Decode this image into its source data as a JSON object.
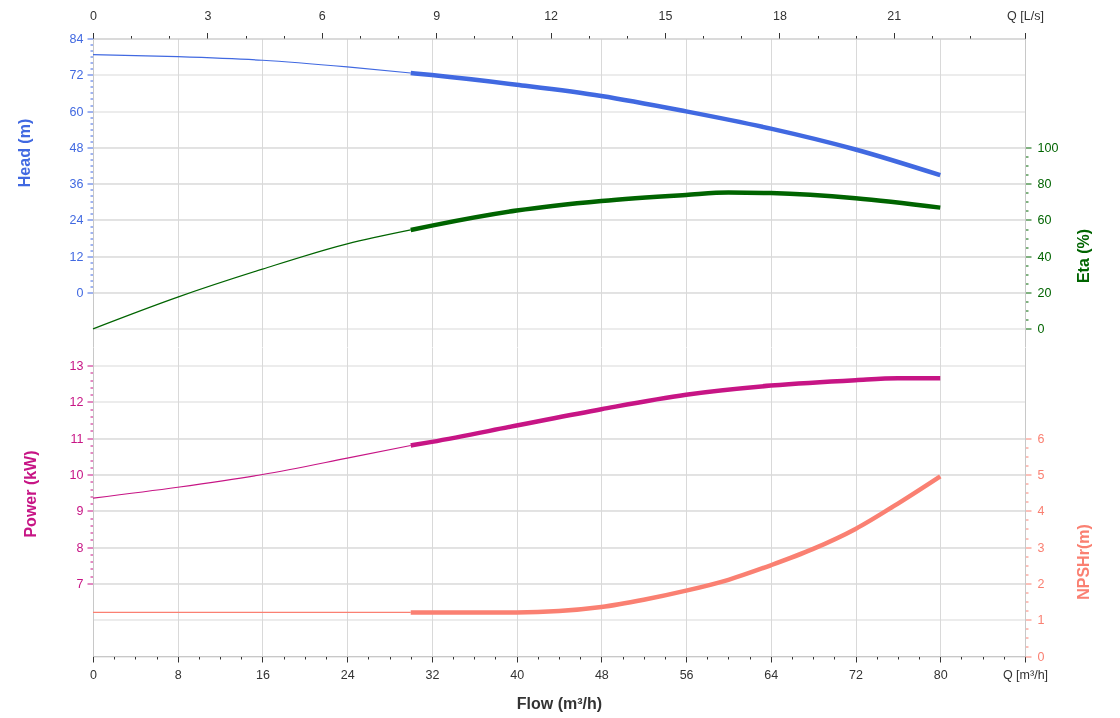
{
  "chart_data": [
    {
      "type": "line",
      "ylabel": "Head (m)",
      "y2label": "Eta (%)",
      "tick_labels": "y",
      "grid": true,
      "xlim": [
        0,
        88
      ],
      "xticks": [
        0,
        8,
        16,
        24,
        32,
        40,
        48,
        56,
        64,
        72,
        80
      ],
      "x2lim": [
        0,
        24.44
      ],
      "x2ticks": [
        0,
        {
          "value": 1,
          "label": null
        },
        {
          "value": 2,
          "label": null
        },
        3,
        {
          "value": 4,
          "label": null
        },
        {
          "value": 5,
          "label": null
        },
        6,
        {
          "value": 7,
          "label": null
        },
        {
          "value": 8,
          "label": null
        },
        9,
        {
          "value": 10,
          "label": null
        },
        {
          "value": 11,
          "label": null
        },
        12,
        {
          "value": 13,
          "label": null
        },
        {
          "value": 14,
          "label": null
        },
        15,
        {
          "value": 16,
          "label": null
        },
        {
          "value": 17,
          "label": null
        },
        18,
        {
          "value": 19,
          "label": null
        },
        {
          "value": 20,
          "label": null
        },
        21,
        {
          "value": 22,
          "label": null
        },
        {
          "value": 23,
          "label": null
        },
        {
          "value": 24.44,
          "label": "Q [L/s]"
        }
      ],
      "ylim": [
        -18,
        84
      ],
      "yticks": [
        0,
        {
          "value": 2,
          "label": null
        },
        {
          "value": 4,
          "label": null
        },
        {
          "value": 6,
          "label": null
        },
        {
          "value": 8,
          "label": null
        },
        {
          "value": 10,
          "label": null
        },
        12,
        {
          "value": 14,
          "label": null
        },
        {
          "value": 16,
          "label": null
        },
        {
          "value": 18,
          "label": null
        },
        {
          "value": 20,
          "label": null
        },
        {
          "value": 22,
          "label": null
        },
        24,
        {
          "value": 26,
          "label": null
        },
        {
          "value": 28,
          "label": null
        },
        {
          "value": 30,
          "label": null
        },
        {
          "value": 32,
          "label": null
        },
        {
          "value": 34,
          "label": null
        },
        36,
        {
          "value": 38,
          "label": null
        },
        {
          "value": 40,
          "label": null
        },
        {
          "value": 42,
          "label": null
        },
        {
          "value": 44,
          "label": null
        },
        {
          "value": 46,
          "label": null
        },
        48,
        {
          "value": 50,
          "label": null
        },
        {
          "value": 52,
          "label": null
        },
        {
          "value": 54,
          "label": null
        },
        {
          "value": 56,
          "label": null
        },
        {
          "value": 58,
          "label": null
        },
        60,
        {
          "value": 62,
          "label": null
        },
        {
          "value": 64,
          "label": null
        },
        {
          "value": 66,
          "label": null
        },
        {
          "value": 68,
          "label": null
        },
        {
          "value": 70,
          "label": null
        },
        72,
        {
          "value": 74,
          "label": null
        },
        {
          "value": 76,
          "label": null
        },
        {
          "value": 78,
          "label": null
        },
        {
          "value": 80,
          "label": null
        },
        {
          "value": 82,
          "label": null
        },
        84
      ],
      "y2lim": [
        -10,
        160
      ],
      "y2ticks": [
        0,
        {
          "value": 5,
          "label": null
        },
        {
          "value": 10,
          "label": null
        },
        {
          "value": 15,
          "label": null
        },
        20,
        {
          "value": 25,
          "label": null
        },
        {
          "value": 30,
          "label": null
        },
        {
          "value": 35,
          "label": null
        },
        40,
        {
          "value": 45,
          "label": null
        },
        {
          "value": 50,
          "label": null
        },
        {
          "value": 55,
          "label": null
        },
        60,
        {
          "value": 65,
          "label": null
        },
        {
          "value": 70,
          "label": null
        },
        {
          "value": 75,
          "label": null
        },
        80,
        {
          "value": 85,
          "label": null
        },
        {
          "value": 90,
          "label": null
        },
        {
          "value": 95,
          "label": null
        },
        100
      ],
      "series": [
        {
          "color": "#4169e1",
          "x": [
            0,
            8,
            16,
            24,
            30
          ],
          "values": [
            78.7,
            78.0,
            76.8,
            74.6,
            72.6
          ]
        },
        {
          "color": "#4169e1",
          "x": [
            30,
            32,
            40,
            48,
            56,
            64,
            72,
            80
          ],
          "values": [
            72.6,
            71.9,
            68.7,
            65.0,
            59.9,
            54.2,
            47.3,
            38.8
          ]
        },
        {
          "color": "#006400",
          "axis": "y2",
          "x": [
            0,
            8,
            16,
            24,
            30
          ],
          "values": [
            0,
            17.5,
            32.9,
            46.8,
            54.5
          ]
        },
        {
          "color": "#006400",
          "axis": "y2",
          "x": [
            30,
            32,
            40,
            48,
            56,
            60,
            64,
            72,
            80
          ],
          "values": [
            54.5,
            56.9,
            65.2,
            70.5,
            73.8,
            75.1,
            74.8,
            72.0,
            66.8
          ]
        }
      ]
    },
    {
      "type": "line",
      "xlabel": "Flow (m³/h)",
      "ylabel": "Power (kW)",
      "y2label": "NPSHr(m)",
      "grid": true,
      "xlim": [
        0,
        88
      ],
      "xticks": [
        0,
        {
          "value": 2,
          "label": null
        },
        {
          "value": 4,
          "label": null
        },
        {
          "value": 6,
          "label": null
        },
        8,
        {
          "value": 10,
          "label": null
        },
        {
          "value": 12,
          "label": null
        },
        {
          "value": 14,
          "label": null
        },
        16,
        {
          "value": 18,
          "label": null
        },
        {
          "value": 20,
          "label": null
        },
        {
          "value": 22,
          "label": null
        },
        24,
        {
          "value": 26,
          "label": null
        },
        {
          "value": 28,
          "label": null
        },
        {
          "value": 30,
          "label": null
        },
        32,
        {
          "value": 34,
          "label": null
        },
        {
          "value": 36,
          "label": null
        },
        {
          "value": 38,
          "label": null
        },
        40,
        {
          "value": 42,
          "label": null
        },
        {
          "value": 44,
          "label": null
        },
        {
          "value": 46,
          "label": null
        },
        48,
        {
          "value": 50,
          "label": null
        },
        {
          "value": 52,
          "label": null
        },
        {
          "value": 54,
          "label": null
        },
        56,
        {
          "value": 58,
          "label": null
        },
        {
          "value": 60,
          "label": null
        },
        {
          "value": 62,
          "label": null
        },
        64,
        {
          "value": 66,
          "label": null
        },
        {
          "value": 68,
          "label": null
        },
        {
          "value": 70,
          "label": null
        },
        72,
        {
          "value": 74,
          "label": null
        },
        {
          "value": 76,
          "label": null
        },
        {
          "value": 78,
          "label": null
        },
        80,
        {
          "value": 82,
          "label": null
        },
        {
          "value": 84,
          "label": null
        },
        {
          "value": 86,
          "label": null
        },
        {
          "value": 88,
          "label": "Q [m³/h]"
        }
      ],
      "ylim": [
        5,
        13.5
      ],
      "yticks": [
        7,
        {
          "value": 7.2,
          "label": null
        },
        {
          "value": 7.4,
          "label": null
        },
        {
          "value": 7.6,
          "label": null
        },
        {
          "value": 7.8,
          "label": null
        },
        8,
        {
          "value": 8.2,
          "label": null
        },
        {
          "value": 8.4,
          "label": null
        },
        {
          "value": 8.6,
          "label": null
        },
        {
          "value": 8.8,
          "label": null
        },
        9,
        {
          "value": 9.2,
          "label": null
        },
        {
          "value": 9.4,
          "label": null
        },
        {
          "value": 9.6,
          "label": null
        },
        {
          "value": 9.8,
          "label": null
        },
        10,
        {
          "value": 10.2,
          "label": null
        },
        {
          "value": 10.4,
          "label": null
        },
        {
          "value": 10.6,
          "label": null
        },
        {
          "value": 10.8,
          "label": null
        },
        11,
        {
          "value": 11.2,
          "label": null
        },
        {
          "value": 11.4,
          "label": null
        },
        {
          "value": 11.6,
          "label": null
        },
        {
          "value": 11.8,
          "label": null
        },
        12,
        {
          "value": 12.2,
          "label": null
        },
        {
          "value": 12.4,
          "label": null
        },
        {
          "value": 12.6,
          "label": null
        },
        {
          "value": 12.8,
          "label": null
        },
        13
      ],
      "y2lim": [
        0,
        8.5
      ],
      "y2ticks": [
        0,
        {
          "value": 0.25,
          "label": null
        },
        {
          "value": 0.5,
          "label": null
        },
        {
          "value": 0.75,
          "label": null
        },
        1,
        {
          "value": 1.25,
          "label": null
        },
        {
          "value": 1.5,
          "label": null
        },
        {
          "value": 1.75,
          "label": null
        },
        2,
        {
          "value": 2.25,
          "label": null
        },
        {
          "value": 2.5,
          "label": null
        },
        {
          "value": 2.75,
          "label": null
        },
        3,
        {
          "value": 3.25,
          "label": null
        },
        {
          "value": 3.5,
          "label": null
        },
        {
          "value": 3.75,
          "label": null
        },
        4,
        {
          "value": 4.25,
          "label": null
        },
        {
          "value": 4.5,
          "label": null
        },
        {
          "value": 4.75,
          "label": null
        },
        5,
        {
          "value": 5.25,
          "label": null
        },
        {
          "value": 5.5,
          "label": null
        },
        {
          "value": 5.75,
          "label": null
        },
        6
      ],
      "series": [
        {
          "color": "#c71585",
          "x": [
            0,
            8,
            16,
            24,
            30
          ],
          "values": [
            9.35,
            9.65,
            10.0,
            10.45,
            10.8
          ]
        },
        {
          "color": "#c71585",
          "x": [
            30,
            32,
            40,
            48,
            56,
            64,
            72,
            76,
            80
          ],
          "values": [
            10.8,
            10.9,
            11.35,
            11.8,
            12.2,
            12.45,
            12.6,
            12.65,
            12.65
          ]
        },
        {
          "color": "#fa8072",
          "axis": "y2",
          "x": [
            0,
            8,
            16,
            24,
            30
          ],
          "values": [
            1.2,
            1.2,
            1.2,
            1.2,
            1.2
          ]
        },
        {
          "color": "#fa8072",
          "axis": "y2",
          "x": [
            30,
            40,
            48,
            52,
            56,
            60,
            64,
            68,
            72,
            76,
            80
          ],
          "values": [
            1.2,
            1.2,
            1.35,
            1.55,
            1.8,
            2.1,
            2.5,
            2.95,
            3.5,
            4.2,
            4.95
          ]
        }
      ]
    }
  ]
}
